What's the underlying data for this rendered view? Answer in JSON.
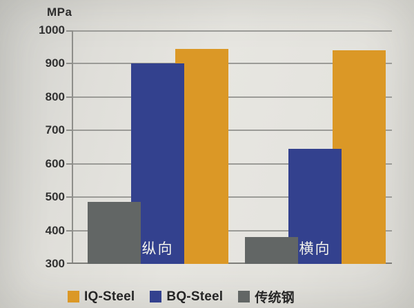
{
  "chart_data": {
    "type": "bar",
    "title": "",
    "unit_label": "MPa",
    "categories": [
      "纵向",
      "横向"
    ],
    "series": [
      {
        "name": "IQ-Steel",
        "color": "#DB9826",
        "values": [
          945,
          940
        ]
      },
      {
        "name": "BQ-Steel",
        "color": "#33418E",
        "values": [
          900,
          645
        ]
      },
      {
        "name": "传统钢",
        "color": "#626665",
        "values": [
          485,
          380
        ]
      }
    ],
    "ylim": [
      300,
      1000
    ],
    "yticks": [
      1000,
      900,
      800,
      700,
      600,
      500,
      400,
      300
    ],
    "grid": true,
    "legend_position": "bottom",
    "bar_style": "overlapped"
  }
}
